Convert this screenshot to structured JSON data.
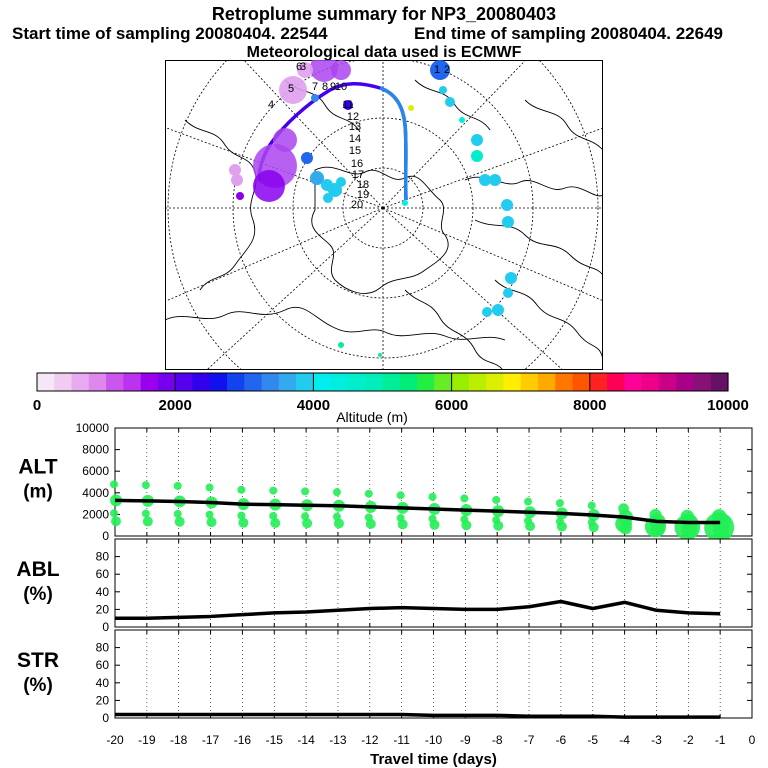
{
  "header": {
    "title": "Retroplume summary for NP3_20080403",
    "start_label": "Start time of sampling 20080404. 22544",
    "end_label": "End time of sampling 20080404. 22649",
    "met_label": "Meteorological data used is ECMWF"
  },
  "colorbar": {
    "label": "Altitude (m)",
    "tick_labels": [
      "0",
      "2000",
      "4000",
      "6000",
      "8000",
      "10000"
    ],
    "colors": [
      "#f7e6f7",
      "#f0ccf0",
      "#e8aaf0",
      "#de88ee",
      "#cc55ee",
      "#bb33ee",
      "#9900ee",
      "#7700ee",
      "#5500ee",
      "#3300ee",
      "#1111ee",
      "#1144ee",
      "#2266ee",
      "#3388ee",
      "#33aaee",
      "#22ccee",
      "#00eeee",
      "#00eedd",
      "#00eecc",
      "#00eebb",
      "#00ee99",
      "#00ee77",
      "#22ee44",
      "#66ee22",
      "#99ee00",
      "#bbee00",
      "#ddee00",
      "#ffee00",
      "#ffcc00",
      "#ffaa00",
      "#ff7700",
      "#ff5500",
      "#ff2222",
      "#ff0055",
      "#ff0099",
      "#ee0088",
      "#cc0088",
      "#aa0088",
      "#881177",
      "#661166"
    ]
  },
  "map": {
    "day_labels": [
      "1",
      "2",
      "3",
      "4",
      "5",
      "6",
      "7",
      "8",
      "9",
      "10",
      "11",
      "12",
      "13",
      "14",
      "15",
      "16",
      "17",
      "18",
      "19",
      "20"
    ]
  },
  "panels": {
    "alt_label": [
      "ALT",
      "(m)"
    ],
    "abl_label": [
      "ABL",
      "(%)"
    ],
    "str_label": [
      "STR",
      "(%)"
    ],
    "xlabel": "Travel time (days)"
  },
  "chart_data": [
    {
      "type": "line",
      "title": "ALT",
      "ylabel": "(m)",
      "xlabel": "Travel time (days)",
      "x": [
        -20,
        -19,
        -18,
        -17,
        -16,
        -15,
        -14,
        -13,
        -12,
        -11,
        -10,
        -9,
        -8,
        -7,
        -6,
        -5,
        -4,
        -3,
        -2,
        -1
      ],
      "values": [
        3300,
        3250,
        3200,
        3100,
        2950,
        2900,
        2850,
        2800,
        2700,
        2600,
        2500,
        2400,
        2300,
        2200,
        2100,
        1950,
        1750,
        1350,
        1250,
        1250
      ],
      "ylim": [
        0,
        10000
      ],
      "xlim": [
        -20,
        0
      ],
      "yticks": [
        "0",
        "2000",
        "4000",
        "6000",
        "8000",
        "10000"
      ],
      "xticks": [
        "-20",
        "-19",
        "-18",
        "-17",
        "-16",
        "-15",
        "-14",
        "-13",
        "-12",
        "-11",
        "-10",
        "-9",
        "-8",
        "-7",
        "-6",
        "-5",
        "-4",
        "-3",
        "-2",
        "-1",
        "0"
      ]
    },
    {
      "type": "line",
      "title": "ABL",
      "ylabel": "(%)",
      "x": [
        -20,
        -19,
        -18,
        -17,
        -16,
        -15,
        -14,
        -13,
        -12,
        -11,
        -10,
        -9,
        -8,
        -7,
        -6,
        -5,
        -4,
        -3,
        -2,
        -1
      ],
      "values": [
        10,
        10,
        11,
        12,
        14,
        16,
        17,
        19,
        21,
        22,
        21,
        20,
        20,
        23,
        29,
        21,
        28,
        19,
        16,
        15
      ],
      "ylim": [
        0,
        100
      ],
      "yticks": [
        "0",
        "20",
        "40",
        "60",
        "80"
      ]
    },
    {
      "type": "line",
      "title": "STR",
      "ylabel": "(%)",
      "x": [
        -20,
        -19,
        -18,
        -17,
        -16,
        -15,
        -14,
        -13,
        -12,
        -11,
        -10,
        -9,
        -8,
        -7,
        -6,
        -5,
        -4,
        -3,
        -2,
        -1
      ],
      "values": [
        4,
        4,
        4,
        4,
        4,
        4,
        4,
        4,
        4,
        4,
        3,
        3,
        3,
        2,
        2,
        2,
        1,
        1,
        1,
        1
      ],
      "ylim": [
        0,
        100
      ],
      "yticks": [
        "0",
        "20",
        "40",
        "60",
        "80"
      ]
    }
  ]
}
